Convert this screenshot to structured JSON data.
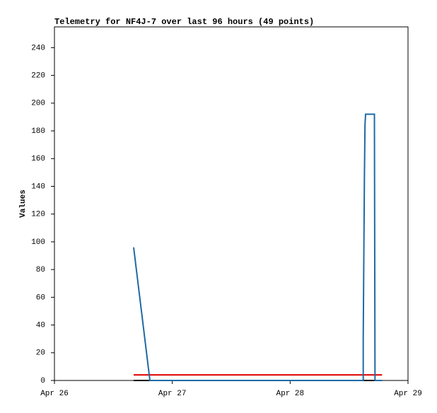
{
  "chart_data": {
    "type": "line",
    "title": "Telemetry for NF4J-7 over last 96 hours (49 points)",
    "y_label": "Values",
    "xlim": [
      0,
      3
    ],
    "xticks": [
      {
        "value": 0,
        "label": "Apr 26"
      },
      {
        "value": 1,
        "label": "Apr 27"
      },
      {
        "value": 2,
        "label": "Apr 28"
      },
      {
        "value": 3,
        "label": "Apr 29"
      }
    ],
    "ylim": [
      0,
      255
    ],
    "yticks": [
      0,
      20,
      40,
      60,
      80,
      100,
      120,
      140,
      160,
      180,
      200,
      220,
      240
    ],
    "series": [
      {
        "color": "#000000",
        "x": [
          0.672,
          2.78
        ],
        "values": [
          0,
          0
        ]
      },
      {
        "color": "#e00000",
        "x": [
          0.672,
          2.78
        ],
        "values": [
          4,
          4
        ]
      },
      {
        "color": "#1f6aa5",
        "x": [
          0.672,
          0.81,
          2.62,
          2.62,
          2.625,
          2.63,
          2.635,
          2.64,
          2.715,
          2.72,
          2.78
        ],
        "values": [
          96,
          0,
          0,
          30,
          88,
          146,
          184,
          192,
          192,
          0,
          0
        ]
      }
    ]
  }
}
